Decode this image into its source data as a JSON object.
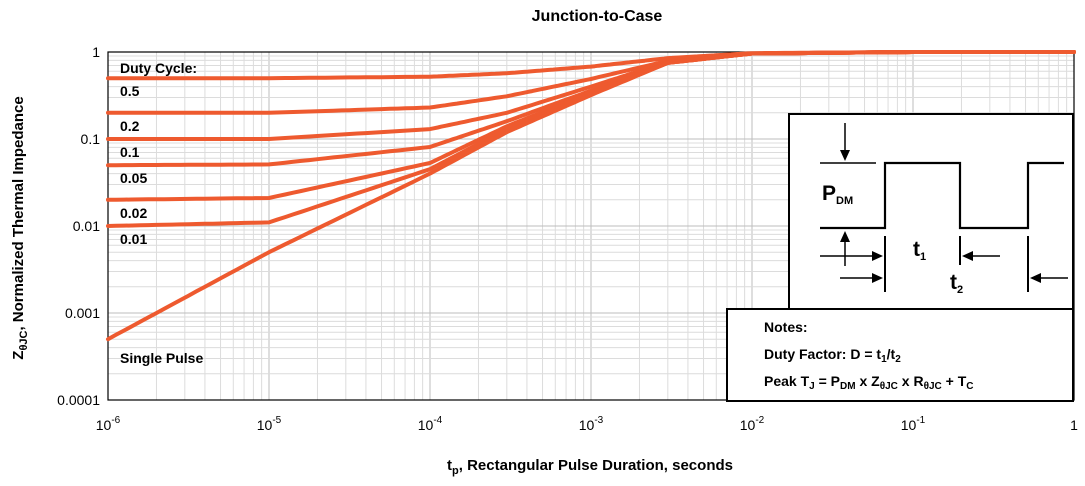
{
  "chart_data": {
    "type": "line",
    "title": "Junction-to-Case",
    "xlabel": {
      "main": "t",
      "sub": "p",
      "rest": ", Rectangular Pulse Duration, seconds"
    },
    "ylabel": {
      "main": "Z",
      "sub": "θJC",
      "rest": ", Normalized Thermal Impedance"
    },
    "x_scale": "log",
    "y_scale": "log",
    "xlim": [
      1e-06,
      1
    ],
    "ylim": [
      0.0001,
      1
    ],
    "grid": true,
    "x_ticks": [
      {
        "base": "10",
        "exp": "-6"
      },
      {
        "base": "10",
        "exp": "-5"
      },
      {
        "base": "10",
        "exp": "-4"
      },
      {
        "base": "10",
        "exp": "-3"
      },
      {
        "base": "10",
        "exp": "-2"
      },
      {
        "base": "10",
        "exp": "-1"
      },
      {
        "base": "1",
        "exp": ""
      }
    ],
    "y_ticks": [
      "1",
      "0.1",
      "0.01",
      "0.001",
      "0.0001"
    ],
    "series_color": "#ee5a2f",
    "legend_title": "Duty Cycle:",
    "series": [
      {
        "name": "0.5",
        "duty": 0.5,
        "x": [
          1e-06,
          1e-05,
          0.0001,
          0.0003,
          0.001,
          0.003,
          0.01,
          0.1,
          1
        ],
        "y": [
          0.5,
          0.5,
          0.52,
          0.57,
          0.68,
          0.85,
          0.97,
          1.0,
          1.0
        ]
      },
      {
        "name": "0.2",
        "duty": 0.2,
        "x": [
          1e-06,
          1e-05,
          0.0001,
          0.0003,
          0.001,
          0.003,
          0.01,
          0.1,
          1
        ],
        "y": [
          0.2,
          0.2,
          0.23,
          0.31,
          0.49,
          0.79,
          0.96,
          1.0,
          1.0
        ]
      },
      {
        "name": "0.1",
        "duty": 0.1,
        "x": [
          1e-06,
          1e-05,
          0.0001,
          0.0003,
          0.001,
          0.003,
          0.01,
          0.1,
          1
        ],
        "y": [
          0.1,
          0.1,
          0.13,
          0.2,
          0.4,
          0.77,
          0.96,
          1.0,
          1.0
        ]
      },
      {
        "name": "0.05",
        "duty": 0.05,
        "x": [
          1e-06,
          1e-05,
          0.0001,
          0.0003,
          0.001,
          0.003,
          0.01,
          0.1,
          1
        ],
        "y": [
          0.05,
          0.051,
          0.081,
          0.16,
          0.36,
          0.76,
          0.96,
          1.0,
          1.0
        ]
      },
      {
        "name": "0.02",
        "duty": 0.02,
        "x": [
          1e-06,
          1e-05,
          0.0001,
          0.0003,
          0.001,
          0.003,
          0.01,
          0.1,
          1
        ],
        "y": [
          0.02,
          0.021,
          0.053,
          0.14,
          0.34,
          0.75,
          0.96,
          1.0,
          1.0
        ]
      },
      {
        "name": "0.01",
        "duty": 0.01,
        "x": [
          1e-06,
          1e-05,
          0.0001,
          0.0003,
          0.001,
          0.003,
          0.01,
          0.1,
          1
        ],
        "y": [
          0.01,
          0.011,
          0.045,
          0.13,
          0.33,
          0.75,
          0.96,
          1.0,
          1.0
        ]
      },
      {
        "name": "Single Pulse",
        "duty": 0,
        "x": [
          1e-06,
          1e-05,
          0.0001,
          0.0003,
          0.001,
          0.003,
          0.01,
          0.1,
          1
        ],
        "y": [
          0.0005,
          0.005,
          0.04,
          0.12,
          0.32,
          0.75,
          0.96,
          1.0,
          1.0
        ]
      }
    ]
  },
  "inset": {
    "pdm_main": "P",
    "pdm_sub": "DM",
    "t1_main": "t",
    "t1_sub": "1",
    "t2_main": "t",
    "t2_sub": "2"
  },
  "notes": {
    "heading": "Notes:",
    "line1_prefix": "Duty Factor: D = t",
    "line1_sub1": "1",
    "line1_mid": "/t",
    "line1_sub2": "2",
    "line2_prefix": "Peak T",
    "line2_sub_j": "J",
    "line2_eq": " = P",
    "line2_sub_dm": "DM",
    "line2_x1": " x Z",
    "line2_sub_zjc": "θJC",
    "line2_x2": " x R",
    "line2_sub_rjc": "θJC",
    "line2_plus": " + T",
    "line2_sub_c": "C"
  }
}
